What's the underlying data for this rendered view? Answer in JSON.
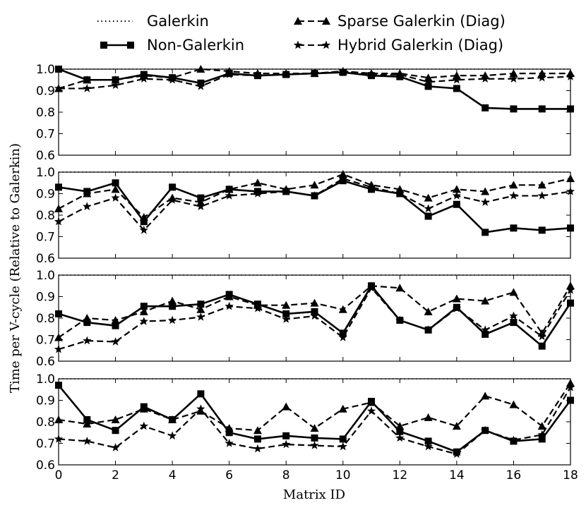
{
  "chart_data": {
    "type": "line",
    "xlabel": "Matrix ID",
    "ylabel": "Time per V-cycle (Relative to Galerkin)",
    "xlim": [
      0,
      18
    ],
    "ylim": [
      0.6,
      1.0
    ],
    "x_ticks": [
      "0",
      "2",
      "4",
      "6",
      "8",
      "10",
      "12",
      "14",
      "16",
      "18"
    ],
    "y_ticks": [
      "0.6",
      "0.7",
      "0.8",
      "0.9",
      "1.0"
    ],
    "legend": [
      {
        "name": "Galerkin",
        "style": "dotted",
        "marker": "none"
      },
      {
        "name": "Sparse Galerkin (Diag)",
        "style": "dashed",
        "marker": "triangle"
      },
      {
        "name": "Non-Galerkin",
        "style": "solid",
        "marker": "square"
      },
      {
        "name": "Hybrid Galerkin (Diag)",
        "style": "dashed",
        "marker": "star"
      }
    ],
    "x": [
      0,
      1,
      2,
      3,
      4,
      5,
      6,
      7,
      8,
      9,
      10,
      11,
      12,
      13,
      14,
      15,
      16,
      17,
      18
    ],
    "panels": [
      {
        "series": [
          {
            "name": "Galerkin",
            "values": [
              1,
              1,
              1,
              1,
              1,
              1,
              1,
              1,
              1,
              1,
              1,
              1,
              1,
              1,
              1,
              1,
              1,
              1,
              1
            ]
          },
          {
            "name": "Sparse Galerkin (Diag)",
            "values": [
              0.91,
              0.95,
              0.95,
              0.97,
              0.96,
              1.0,
              0.99,
              0.98,
              0.98,
              0.98,
              0.99,
              0.98,
              0.98,
              0.96,
              0.97,
              0.97,
              0.98,
              0.98,
              0.98
            ]
          },
          {
            "name": "Non-Galerkin",
            "values": [
              1.0,
              0.95,
              0.95,
              0.975,
              0.96,
              0.935,
              0.98,
              0.97,
              0.975,
              0.98,
              0.985,
              0.97,
              0.965,
              0.92,
              0.91,
              0.82,
              0.815,
              0.815,
              0.815
            ]
          },
          {
            "name": "Hybrid Galerkin (Diag)",
            "values": [
              0.91,
              0.91,
              0.925,
              0.955,
              0.95,
              0.92,
              0.975,
              0.97,
              0.975,
              0.98,
              0.99,
              0.975,
              0.975,
              0.94,
              0.95,
              0.955,
              0.955,
              0.96,
              0.965
            ]
          }
        ]
      },
      {
        "series": [
          {
            "name": "Galerkin",
            "values": [
              1,
              1,
              1,
              1,
              1,
              1,
              1,
              1,
              1,
              1,
              1,
              1,
              1,
              1,
              1,
              1,
              1,
              1,
              1
            ]
          },
          {
            "name": "Sparse Galerkin (Diag)",
            "values": [
              0.83,
              0.9,
              0.92,
              0.79,
              0.88,
              0.86,
              0.92,
              0.95,
              0.92,
              0.94,
              0.99,
              0.94,
              0.92,
              0.88,
              0.92,
              0.91,
              0.94,
              0.94,
              0.97
            ]
          },
          {
            "name": "Non-Galerkin",
            "values": [
              0.93,
              0.91,
              0.95,
              0.77,
              0.93,
              0.88,
              0.92,
              0.91,
              0.91,
              0.89,
              0.96,
              0.92,
              0.9,
              0.795,
              0.85,
              0.72,
              0.74,
              0.73,
              0.74
            ]
          },
          {
            "name": "Hybrid Galerkin (Diag)",
            "values": [
              0.77,
              0.84,
              0.88,
              0.73,
              0.87,
              0.84,
              0.89,
              0.9,
              0.91,
              0.89,
              0.97,
              0.93,
              0.9,
              0.83,
              0.89,
              0.86,
              0.89,
              0.89,
              0.91
            ]
          }
        ]
      },
      {
        "series": [
          {
            "name": "Galerkin",
            "values": [
              1,
              1,
              1,
              1,
              1,
              1,
              1,
              1,
              1,
              1,
              1,
              1,
              1,
              1,
              1,
              1,
              1,
              1,
              1
            ]
          },
          {
            "name": "Sparse Galerkin (Diag)",
            "values": [
              0.71,
              0.8,
              0.79,
              0.83,
              0.88,
              0.84,
              0.9,
              0.86,
              0.86,
              0.87,
              0.84,
              0.95,
              0.94,
              0.83,
              0.89,
              0.88,
              0.92,
              0.73,
              0.95
            ]
          },
          {
            "name": "Non-Galerkin",
            "values": [
              0.82,
              0.78,
              0.765,
              0.855,
              0.855,
              0.865,
              0.91,
              0.865,
              0.82,
              0.83,
              0.73,
              0.95,
              0.79,
              0.745,
              0.85,
              0.725,
              0.78,
              0.67,
              0.87
            ]
          },
          {
            "name": "Hybrid Galerkin (Diag)",
            "values": [
              0.655,
              0.695,
              0.69,
              0.785,
              0.79,
              0.805,
              0.855,
              0.845,
              0.795,
              0.81,
              0.71,
              0.94,
              0.79,
              0.745,
              0.845,
              0.745,
              0.81,
              0.715,
              0.93
            ]
          }
        ]
      },
      {
        "series": [
          {
            "name": "Galerkin",
            "values": [
              1,
              1,
              1,
              1,
              1,
              1,
              1,
              1,
              1,
              1,
              1,
              1,
              1,
              1,
              1,
              1,
              1,
              1,
              1
            ]
          },
          {
            "name": "Sparse Galerkin (Diag)",
            "values": [
              0.81,
              0.79,
              0.81,
              0.86,
              0.81,
              0.85,
              0.77,
              0.76,
              0.87,
              0.77,
              0.86,
              0.89,
              0.78,
              0.82,
              0.78,
              0.92,
              0.88,
              0.78,
              0.98
            ]
          },
          {
            "name": "Non-Galerkin",
            "values": [
              0.97,
              0.81,
              0.76,
              0.87,
              0.81,
              0.93,
              0.75,
              0.72,
              0.735,
              0.725,
              0.72,
              0.895,
              0.755,
              0.71,
              0.66,
              0.76,
              0.71,
              0.72,
              0.9
            ]
          },
          {
            "name": "Hybrid Galerkin (Diag)",
            "values": [
              0.72,
              0.71,
              0.68,
              0.78,
              0.735,
              0.86,
              0.7,
              0.675,
              0.695,
              0.69,
              0.685,
              0.85,
              0.725,
              0.685,
              0.65,
              0.76,
              0.715,
              0.74,
              0.96
            ]
          }
        ]
      }
    ]
  }
}
